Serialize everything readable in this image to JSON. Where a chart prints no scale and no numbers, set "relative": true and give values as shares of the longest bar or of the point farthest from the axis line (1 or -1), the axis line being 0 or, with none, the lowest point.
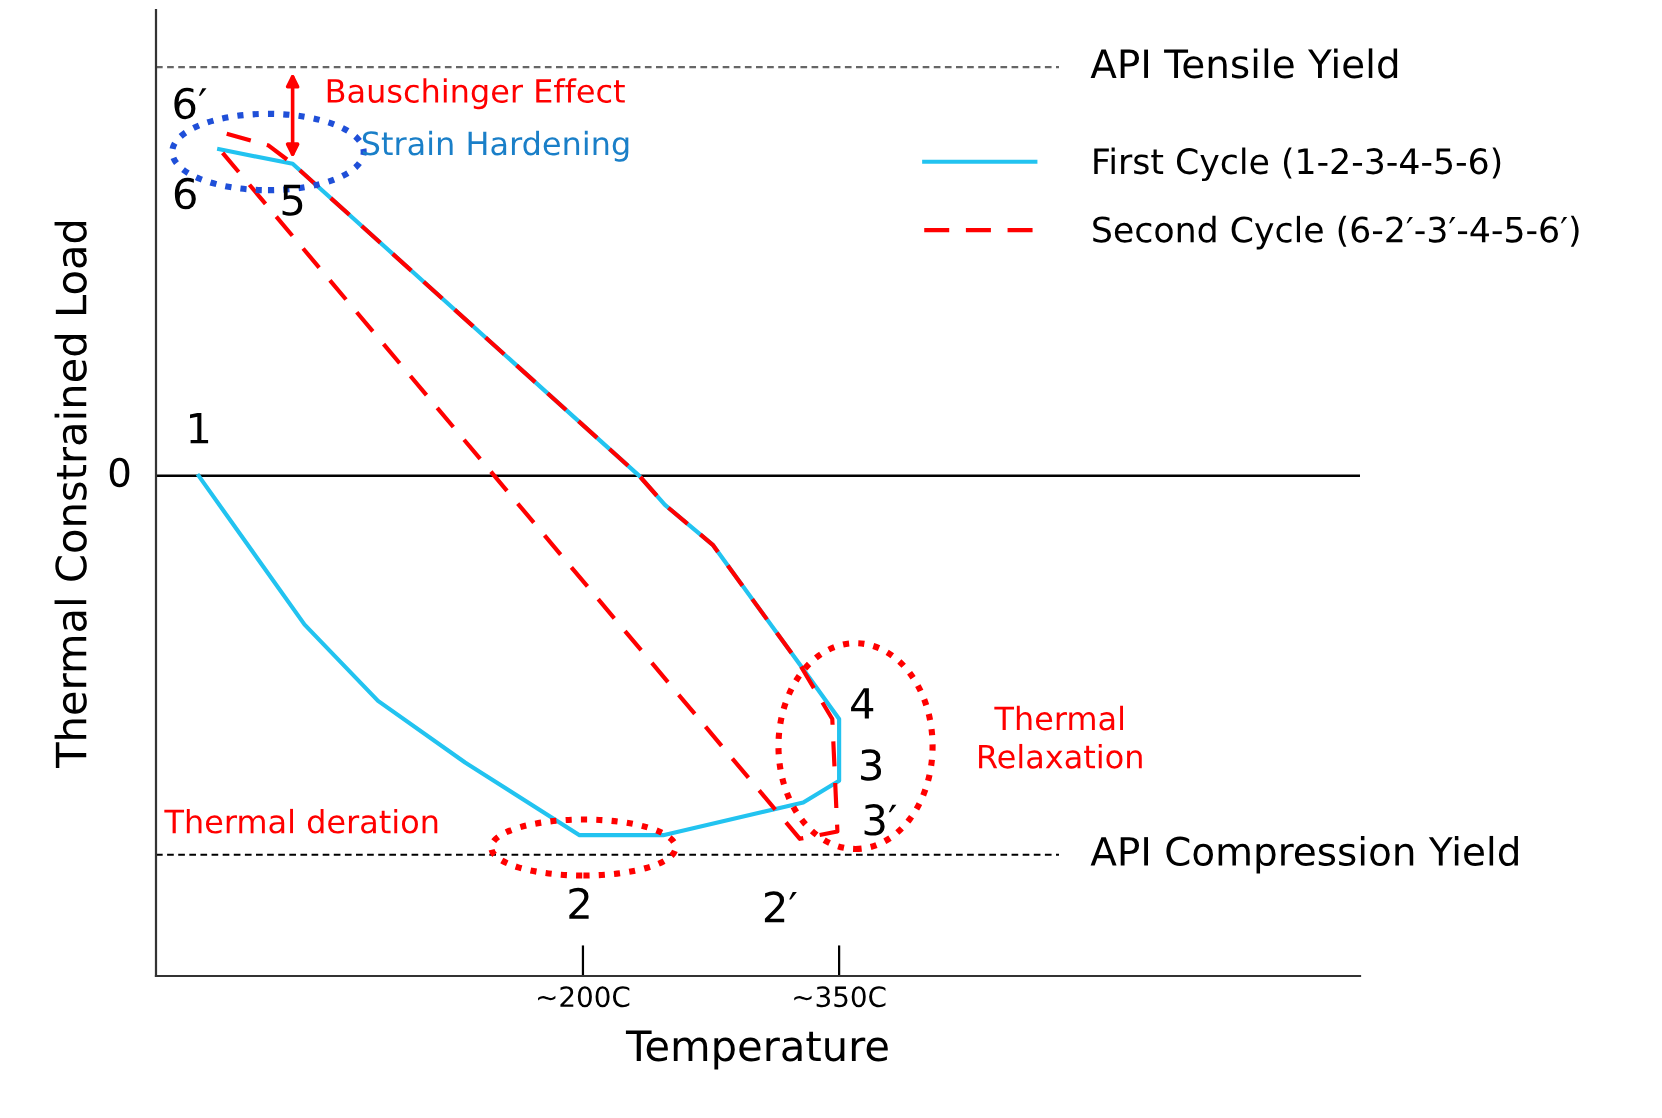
{
  "chart_data": {
    "type": "line",
    "relative": true,
    "xlabel": "Temperature",
    "ylabel": "Thermal Constrained Load",
    "xlim": [
      -50,
      655
    ],
    "xticks": [
      {
        "value": 200,
        "label": "~200C"
      },
      {
        "value": 350,
        "label": "~350C"
      }
    ],
    "grid": false,
    "legend": "top right",
    "marker": "none",
    "series": [
      {
        "name": "First Cycle (1-2-3-4-5-6)",
        "color": "#22c3f0",
        "line_style": "solid",
        "x": [
          -25,
          37,
          80,
          131,
          198,
          247,
          329,
          350,
          350,
          327,
          276,
          248,
          233,
          30,
          -13
        ],
        "values": [
          0,
          -0.41,
          -0.62,
          -0.79,
          -0.99,
          -0.99,
          -0.9,
          -0.84,
          -0.67,
          -0.52,
          -0.19,
          -0.08,
          0,
          0.86,
          0.9
        ]
      },
      {
        "name": "Second Cycle (6-2′-3′-4-5-6′)",
        "color": "#ff0000",
        "line_style": "dashed",
        "x": [
          -11,
          327,
          349,
          346,
          327,
          276,
          248,
          233,
          30,
          16,
          -14
        ],
        "values": [
          0.89,
          -1,
          -0.98,
          -0.67,
          -0.52,
          -0.19,
          -0.08,
          0,
          0.86,
          0.91,
          0.95
        ]
      }
    ],
    "ref_lines": [
      {
        "axis": "y",
        "value": 0,
        "label": "0",
        "color": "#000000",
        "line_style": "solid"
      },
      {
        "axis": "y",
        "value": 1.126,
        "label": "API Tensile Yield",
        "color": "#666666",
        "line_style": "dashed"
      },
      {
        "axis": "y",
        "value": -1.044,
        "label": "API Compression Yield",
        "color": "#000000",
        "line_style": "dashed"
      }
    ],
    "annotations": [
      {
        "text": "1",
        "x": -25,
        "y": 0
      },
      {
        "text": "2",
        "x": 198,
        "y": -0.99
      },
      {
        "text": "2′",
        "x": 327,
        "y": -1
      },
      {
        "text": "3",
        "x": 350,
        "y": -0.84
      },
      {
        "text": "3′",
        "x": 349,
        "y": -0.98
      },
      {
        "text": "4",
        "x": 346,
        "y": -0.67
      },
      {
        "text": "5",
        "x": 30,
        "y": 0.86
      },
      {
        "text": "6",
        "x": -13,
        "y": 0.9
      },
      {
        "text": "6′",
        "x": -14,
        "y": 0.95
      },
      {
        "text": "Bauschinger Effect",
        "x": 30,
        "y": 0.86
      },
      "Strain Hardening",
      "Thermal\nRelaxation",
      "Thermal deration"
    ]
  }
}
